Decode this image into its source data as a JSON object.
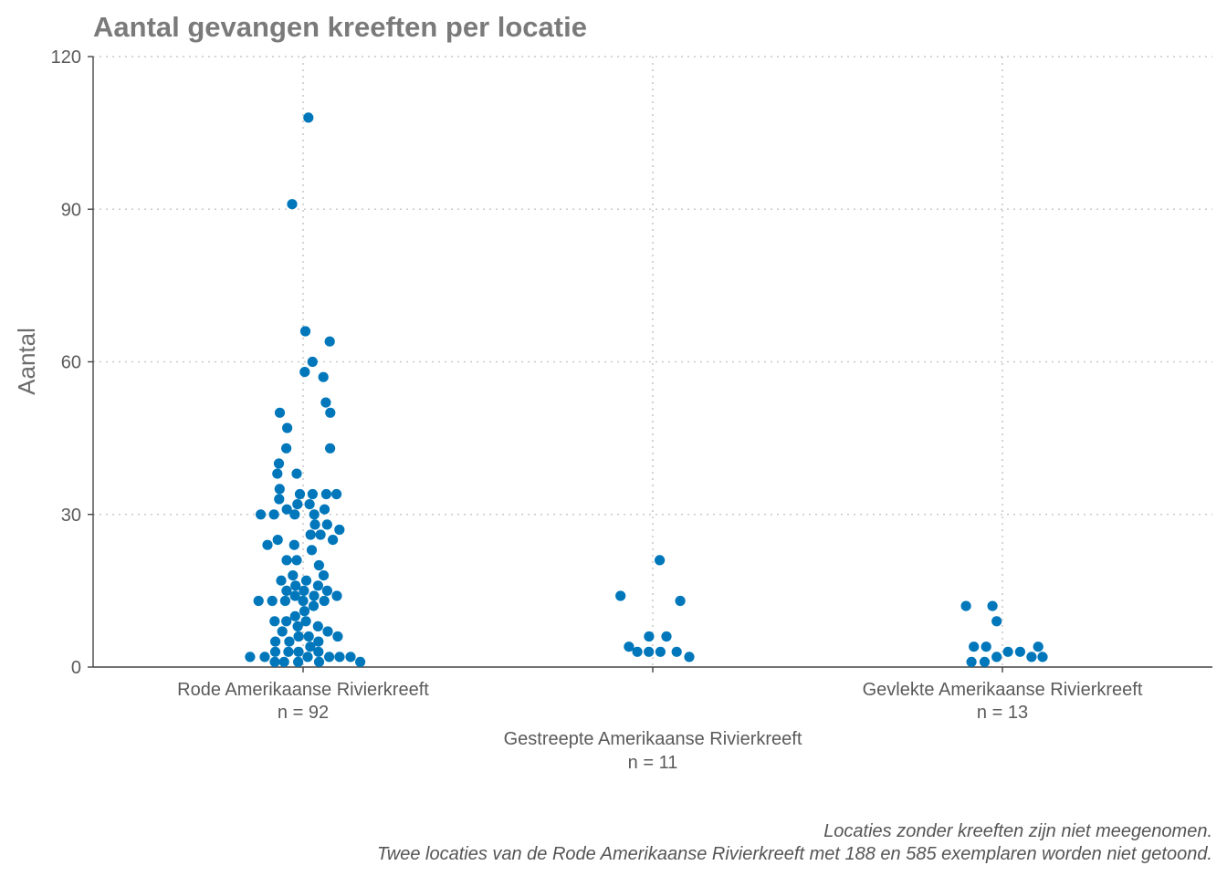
{
  "chart_data": {
    "type": "scatter",
    "title": "Aantal gevangen kreeften per locatie",
    "xlabel": "",
    "ylabel": "Aantal",
    "ylim": [
      0,
      120
    ],
    "yticks": [
      0,
      30,
      60,
      90,
      120
    ],
    "grid": true,
    "point_color": "#0077bb",
    "categories": [
      {
        "name": "Rode Amerikaanse Rivierkreeft",
        "n_label": "n = 92"
      },
      {
        "name": "Gestreepte Amerikaanse Rivierkreeft",
        "n_label": "n = 11"
      },
      {
        "name": "Gevlekte Amerikaanse Rivierkreeft",
        "n_label": "n = 13"
      }
    ],
    "series": [
      {
        "category": "Rode Amerikaanse Rivierkreeft",
        "values": [
          108,
          91,
          66,
          64,
          60,
          58,
          57,
          52,
          50,
          50,
          47,
          43,
          43,
          40,
          38,
          38,
          35,
          34,
          34,
          34,
          34,
          33,
          32,
          32,
          31,
          31,
          30,
          30,
          30,
          30,
          28,
          28,
          27,
          26,
          26,
          25,
          25,
          24,
          24,
          23,
          21,
          21,
          20,
          18,
          18,
          17,
          17,
          16,
          16,
          15,
          15,
          15,
          14,
          14,
          14,
          13,
          13,
          13,
          13,
          13,
          12,
          11,
          10,
          9,
          9,
          9,
          8,
          8,
          7,
          7,
          6,
          6,
          6,
          5,
          5,
          5,
          4,
          3,
          3,
          3,
          3,
          2,
          2,
          2,
          2,
          2,
          2,
          1,
          1,
          1,
          1,
          1
        ]
      },
      {
        "category": "Gestreepte Amerikaanse Rivierkreeft",
        "values": [
          21,
          14,
          13,
          6,
          6,
          4,
          3,
          3,
          3,
          3,
          2
        ]
      },
      {
        "category": "Gevlekte Amerikaanse Rivierkreeft",
        "values": [
          12,
          12,
          9,
          4,
          4,
          4,
          3,
          3,
          2,
          2,
          2,
          1,
          1
        ]
      }
    ],
    "caption": [
      "Locaties zonder kreeften zijn niet meegenomen.",
      "Twee locaties van de Rode Amerikaanse Rivierkreeft met 188 en 585 exemplaren worden niet getoond."
    ]
  }
}
